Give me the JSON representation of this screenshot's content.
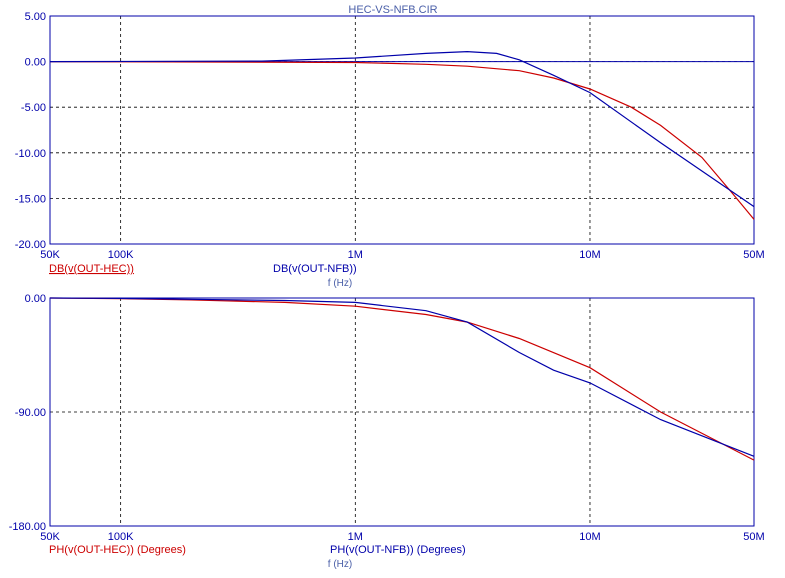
{
  "window": {
    "title": "HEC-VS-NFB.CIR"
  },
  "colors": {
    "hec": "#cc0000",
    "nfb": "#0000aa",
    "axis": "#0000aa",
    "ticks": "#0000aa",
    "grid": "#000000"
  },
  "chart_data": [
    {
      "type": "line",
      "x_scale": "log",
      "x_range": [
        50000,
        50000000
      ],
      "x_ticks": [
        "50K",
        "100K",
        "1M",
        "10M",
        "50M"
      ],
      "x_tick_values": [
        50000,
        100000,
        1000000,
        10000000,
        50000000
      ],
      "xlabel": "f (Hz)",
      "ylim": [
        -20,
        5
      ],
      "y_ticks": [
        "5.00",
        "0.00",
        "-5.00",
        "-10.00",
        "-15.00",
        "-20.00"
      ],
      "y_tick_values": [
        5,
        0,
        -5,
        -10,
        -15,
        -20
      ],
      "grid": true,
      "series": [
        {
          "name": "DB(v(OUT-HEC))",
          "x": [
            50000,
            1000000,
            2000000,
            3000000,
            5000000,
            7000000,
            10000000,
            15000000,
            20000000,
            30000000,
            40000000,
            50000000
          ],
          "values": [
            0,
            -0.1,
            -0.3,
            -0.5,
            -1.0,
            -1.8,
            -3.0,
            -5.0,
            -7.0,
            -10.5,
            -14.3,
            -17.3
          ]
        },
        {
          "name": "DB(v(OUT-NFB))",
          "x": [
            50000,
            400000,
            1000000,
            2000000,
            3000000,
            4000000,
            5000000,
            7000000,
            10000000,
            20000000,
            30000000,
            50000000
          ],
          "values": [
            0,
            0.05,
            0.4,
            0.9,
            1.1,
            0.9,
            0.2,
            -1.5,
            -3.4,
            -8.9,
            -12.0,
            -15.9
          ]
        }
      ]
    },
    {
      "type": "line",
      "x_scale": "log",
      "x_range": [
        50000,
        50000000
      ],
      "x_ticks": [
        "50K",
        "100K",
        "1M",
        "10M",
        "50M"
      ],
      "x_tick_values": [
        50000,
        100000,
        1000000,
        10000000,
        50000000
      ],
      "xlabel": "f (Hz)",
      "ylim": [
        -180,
        0
      ],
      "y_ticks": [
        "0.00",
        "-90.00",
        "-180.00"
      ],
      "y_tick_values": [
        0,
        -90,
        -180
      ],
      "grid": true,
      "series": [
        {
          "name": "PH(v(OUT-HEC)) (Degrees)",
          "x": [
            50000,
            100000,
            200000,
            500000,
            1000000,
            2000000,
            3000000,
            5000000,
            10000000,
            20000000,
            50000000
          ],
          "values": [
            0,
            -0.5,
            -1.5,
            -3.5,
            -6.5,
            -13,
            -19,
            -32,
            -55,
            -90,
            -128
          ]
        },
        {
          "name": "PH(v(OUT-NFB)) (Degrees)",
          "x": [
            50000,
            100000,
            200000,
            500000,
            1000000,
            2000000,
            3000000,
            5000000,
            7000000,
            10000000,
            20000000,
            50000000
          ],
          "values": [
            0,
            -0.3,
            -1,
            -2,
            -3.5,
            -10,
            -19,
            -43,
            -57,
            -67,
            -96,
            -125
          ]
        }
      ]
    }
  ]
}
